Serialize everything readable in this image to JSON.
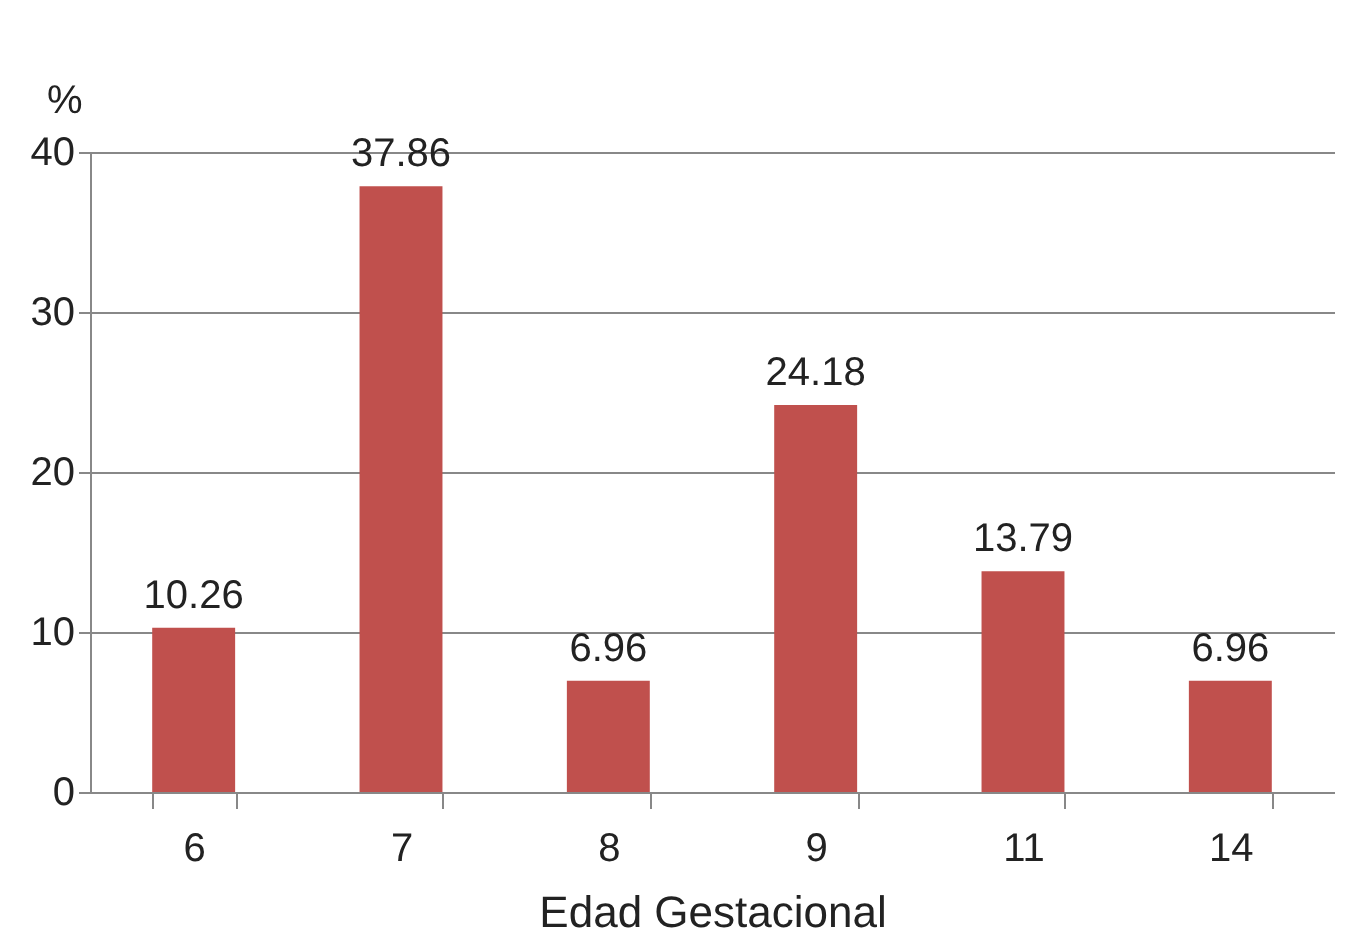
{
  "chart_data": {
    "type": "bar",
    "xlabel": "Edad Gestacional",
    "ylabel": "%",
    "categories": [
      "6",
      "7",
      "8",
      "9",
      "11",
      "14"
    ],
    "values": [
      10.26,
      37.86,
      6.96,
      24.18,
      13.79,
      6.96
    ],
    "color": "#c0504d",
    "ylim": [
      0,
      40
    ],
    "yticks": [
      0,
      10,
      20,
      30,
      40
    ],
    "grid": "y",
    "data_labels": true
  }
}
